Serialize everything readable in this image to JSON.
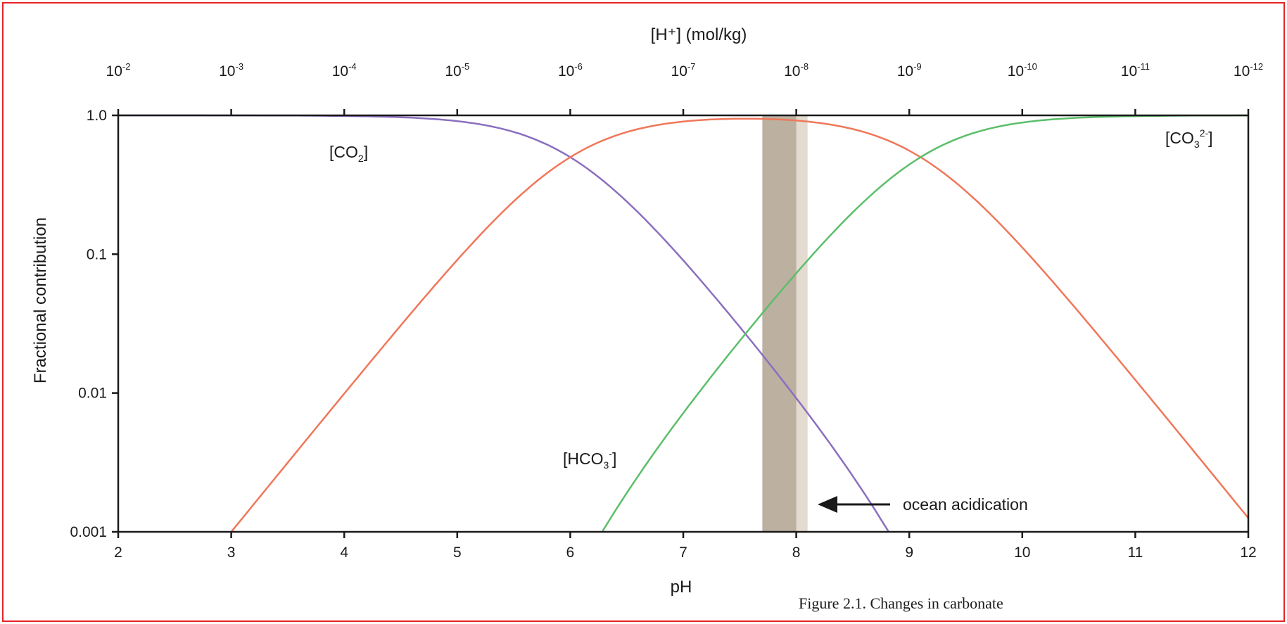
{
  "chart_data": {
    "type": "line",
    "top_xlabel": "[H⁺] (mol/kg)",
    "xlabel": "pH",
    "ylabel": "Fractional contribution",
    "xlim": [
      2,
      12
    ],
    "ylim": [
      0.001,
      1.0
    ],
    "yscale": "log",
    "x_ticks": [
      "2",
      "3",
      "4",
      "5",
      "6",
      "7",
      "8",
      "9",
      "10",
      "11",
      "12"
    ],
    "y_ticks": [
      "0.001",
      "0.01",
      "0.1",
      "1.0"
    ],
    "y_tick_values": [
      0.001,
      0.01,
      0.1,
      1.0
    ],
    "top_ticks": [
      {
        "base": "10",
        "exp": "-2"
      },
      {
        "base": "10",
        "exp": "-3"
      },
      {
        "base": "10",
        "exp": "-4"
      },
      {
        "base": "10",
        "exp": "-5"
      },
      {
        "base": "10",
        "exp": "-6"
      },
      {
        "base": "10",
        "exp": "-7"
      },
      {
        "base": "10",
        "exp": "-8"
      },
      {
        "base": "10",
        "exp": "-9"
      },
      {
        "base": "10",
        "exp": "-10"
      },
      {
        "base": "10",
        "exp": "-11"
      },
      {
        "base": "10",
        "exp": "-12"
      }
    ],
    "pK1": 6.0,
    "pK2": 9.1,
    "x_step": 0.05,
    "series": [
      {
        "key": "co2",
        "name": "[CO₂]",
        "color": "#8b6fbf",
        "label": {
          "main": "[CO",
          "sub": "2",
          "sup": "",
          "close": "]"
        }
      },
      {
        "key": "hco3",
        "name": "[HCO₃⁻]",
        "color": "#f0775a",
        "label": {
          "main": "[HCO",
          "sub": "3",
          "sup": "-",
          "close": "]"
        }
      },
      {
        "key": "co3",
        "name": "[CO₃²⁻]",
        "color": "#5cbe6a",
        "label": {
          "main": "[CO",
          "sub": "3",
          "sup": "2-",
          "close": "]"
        }
      }
    ],
    "bands": [
      {
        "from": 7.7,
        "to": 8.1,
        "color": "#e3dbd0"
      },
      {
        "from": 7.7,
        "to": 8.0,
        "color": "#bcb0a0"
      }
    ],
    "annotation": "ocean acidication"
  },
  "caption": "Figure 2.1. Changes in carbonate"
}
